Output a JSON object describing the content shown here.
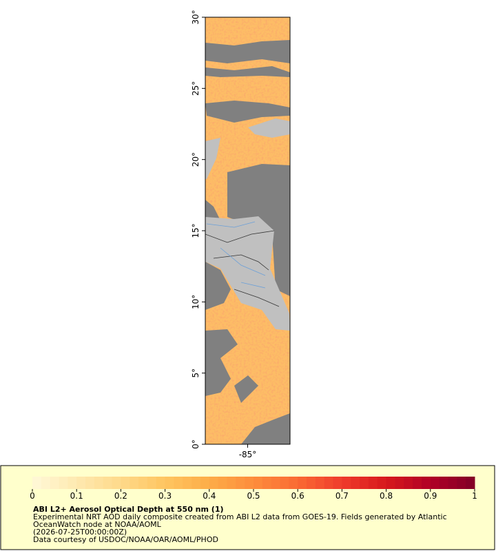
{
  "map": {
    "xlim": [
      -88,
      -82
    ],
    "ylim": [
      0,
      30
    ],
    "xticks": [
      {
        "value": -85,
        "label": "-85°"
      }
    ],
    "yticks": [
      {
        "value": 0,
        "label": "0°"
      },
      {
        "value": 5,
        "label": "5°"
      },
      {
        "value": 10,
        "label": "10°"
      },
      {
        "value": 15,
        "label": "15°"
      },
      {
        "value": 20,
        "label": "20°"
      },
      {
        "value": 25,
        "label": "25°"
      },
      {
        "value": 30,
        "label": "30°"
      }
    ]
  },
  "colorbar": {
    "lim": [
      0,
      1
    ],
    "ticks": [
      0,
      0.1,
      0.2,
      0.3,
      0.4,
      0.5,
      0.6,
      0.7,
      0.8,
      0.9,
      1
    ],
    "colors": [
      "#fff8d8",
      "#fee9b0",
      "#fed98a",
      "#fec560",
      "#fdac48",
      "#fd8d3c",
      "#fa6a33",
      "#ef3b2c",
      "#d7191c",
      "#b10026",
      "#800026"
    ]
  },
  "caption": {
    "title": "ABI L2+ Aerosol Optical Depth at 550 nm (1)",
    "lines": [
      "Experimental NRT AOD daily composite created from ABI L2 data from GOES-19. Fields generated by Atlantic",
      "OceanWatch node at NOAA/AOML",
      "(2026-07-25T00:00:00Z)",
      "Data courtesy of USDOC/NOAA/OAR/AOML/PHOD"
    ]
  }
}
